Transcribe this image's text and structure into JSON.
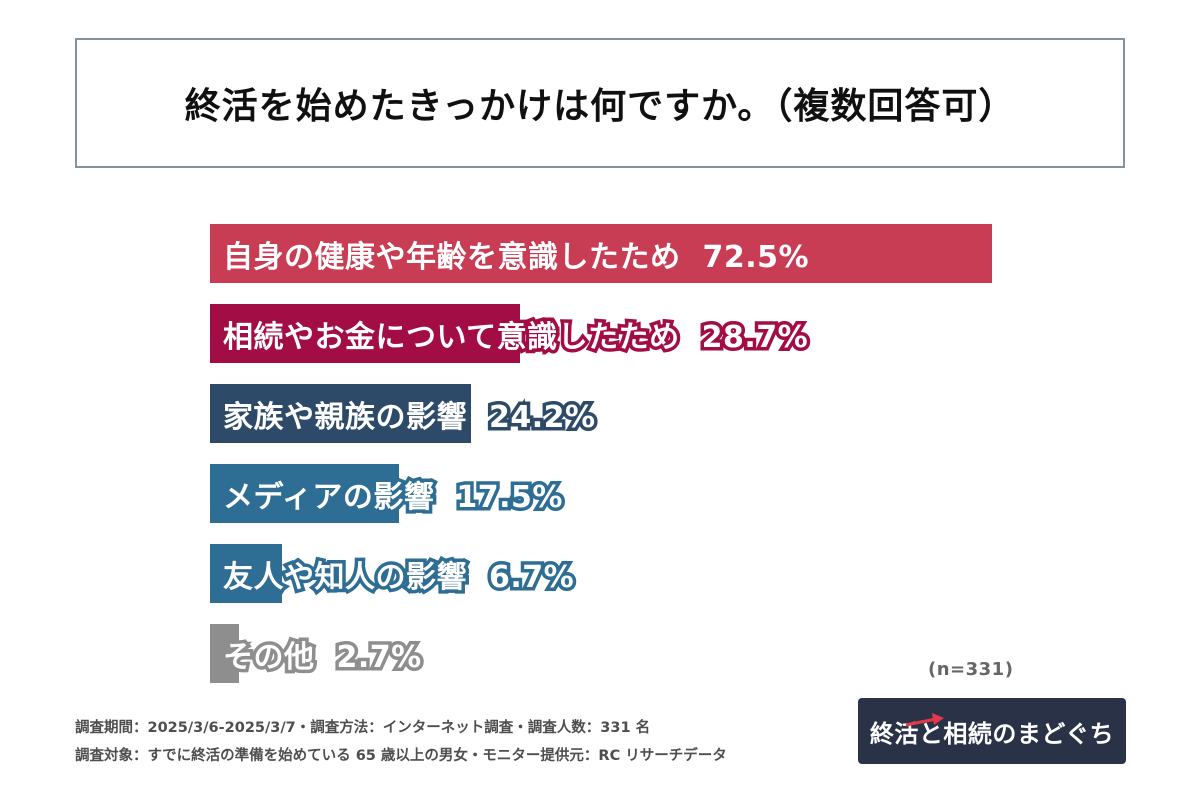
{
  "title": "終活を始めたきっかけは何ですか。（複数回答可）",
  "chart_data": {
    "type": "bar",
    "orientation": "horizontal",
    "title": "終活を始めたきっかけは何ですか。（複数回答可）",
    "categories": [
      "自身の健康や年齢を意識したため",
      "相続やお金について意識したため",
      "家族や親族の影響",
      "メディアの影響",
      "友人や知人の影響",
      "その他"
    ],
    "values": [
      72.5,
      28.7,
      24.2,
      17.5,
      6.7,
      2.7
    ],
    "value_labels": [
      "72.5%",
      "28.7%",
      "24.2%",
      "17.5%",
      "6.7%",
      "2.7%"
    ],
    "bar_colors": [
      "#C83C54",
      "#A30D45",
      "#2D4B69",
      "#2E6D94",
      "#2E6D94",
      "#8E8E8E"
    ],
    "xlim": [
      0,
      74.5
    ],
    "grid": false,
    "legend": "none",
    "sample_size_label": "(n=331)"
  },
  "footer": {
    "line1": "調査期間：2025/3/6-2025/3/7・調査方法：インターネット調査・調査人数：331 名",
    "line2": "調査対象：すでに終活の準備を始めている 65 歳以上の男女・モニター提供元：RC リサーチデータ"
  },
  "logo": {
    "text": "終活と相続のまどぐち",
    "bg_color": "#293247",
    "accent_color": "#E8374A"
  }
}
